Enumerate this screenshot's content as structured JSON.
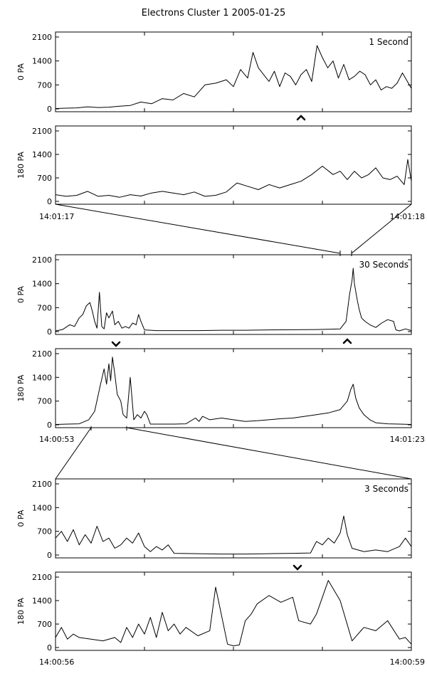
{
  "title": "Electrons Cluster 1 2005-01-25",
  "chart_data": [
    {
      "type": "line",
      "panel": "1s-0pa",
      "ylabel": "0 PA",
      "annotation": "1 Second",
      "ylim": [
        0,
        2100
      ],
      "yticks": [
        0,
        700,
        1400,
        2100
      ],
      "xlim": [
        0,
        1
      ],
      "x": [
        0,
        0.03,
        0.06,
        0.09,
        0.12,
        0.15,
        0.18,
        0.21,
        0.24,
        0.27,
        0.3,
        0.33,
        0.36,
        0.39,
        0.42,
        0.45,
        0.48,
        0.5,
        0.52,
        0.54,
        0.555,
        0.57,
        0.585,
        0.6,
        0.615,
        0.63,
        0.645,
        0.66,
        0.675,
        0.69,
        0.705,
        0.72,
        0.735,
        0.75,
        0.765,
        0.78,
        0.795,
        0.81,
        0.825,
        0.84,
        0.855,
        0.87,
        0.885,
        0.9,
        0.915,
        0.93,
        0.945,
        0.96,
        0.975,
        1.0
      ],
      "values": [
        10,
        20,
        30,
        60,
        40,
        50,
        80,
        100,
        200,
        150,
        300,
        260,
        450,
        350,
        700,
        750,
        850,
        650,
        1150,
        900,
        1650,
        1200,
        1000,
        800,
        1100,
        650,
        1050,
        950,
        700,
        1000,
        1150,
        800,
        1850,
        1500,
        1200,
        1400,
        900,
        1300,
        850,
        950,
        1100,
        1000,
        700,
        850,
        550,
        650,
        600,
        750,
        1050,
        600
      ]
    },
    {
      "type": "line",
      "panel": "1s-180pa",
      "ylabel": "180 PA",
      "ylim": [
        0,
        2100
      ],
      "yticks": [
        0,
        700,
        1400,
        2100
      ],
      "xlim": [
        0,
        1
      ],
      "xtick_labels": [
        "14:01:17",
        "14:01:18"
      ],
      "x": [
        0,
        0.03,
        0.06,
        0.09,
        0.12,
        0.15,
        0.18,
        0.21,
        0.24,
        0.27,
        0.3,
        0.33,
        0.36,
        0.39,
        0.42,
        0.45,
        0.48,
        0.51,
        0.54,
        0.57,
        0.6,
        0.63,
        0.66,
        0.69,
        0.72,
        0.75,
        0.78,
        0.8,
        0.82,
        0.84,
        0.86,
        0.88,
        0.9,
        0.92,
        0.94,
        0.96,
        0.98,
        0.99,
        1.0
      ],
      "values": [
        200,
        150,
        180,
        300,
        150,
        180,
        120,
        200,
        160,
        250,
        300,
        250,
        200,
        280,
        150,
        180,
        280,
        550,
        450,
        350,
        500,
        400,
        500,
        600,
        800,
        1050,
        800,
        900,
        650,
        900,
        700,
        800,
        1000,
        700,
        650,
        750,
        500,
        1250,
        600
      ]
    },
    {
      "type": "line",
      "panel": "30s-0pa",
      "ylabel": "0 PA",
      "annotation": "30 Seconds",
      "ylim": [
        0,
        2100
      ],
      "yticks": [
        0,
        700,
        1400,
        2100
      ],
      "xlim": [
        0,
        30
      ],
      "x": [
        0,
        0.6,
        1.2,
        1.6,
        2.0,
        2.3,
        2.6,
        2.9,
        3.1,
        3.3,
        3.5,
        3.7,
        3.9,
        4.1,
        4.3,
        4.5,
        4.8,
        5.0,
        5.3,
        5.6,
        5.9,
        6.2,
        6.5,
        6.8,
        7.0,
        7.2,
        7.5,
        8.5,
        10,
        12,
        14,
        16,
        18,
        20,
        22,
        24,
        24.5,
        24.8,
        25.0,
        25.1,
        25.2,
        25.3,
        25.45,
        25.6,
        25.8,
        26.1,
        26.5,
        27.0,
        27.5,
        28.0,
        28.5,
        28.7,
        29.0,
        29.5,
        30.0
      ],
      "values": [
        20,
        60,
        200,
        150,
        400,
        500,
        750,
        850,
        600,
        300,
        100,
        1150,
        150,
        80,
        550,
        400,
        600,
        200,
        300,
        100,
        150,
        100,
        250,
        200,
        500,
        300,
        50,
        30,
        30,
        30,
        40,
        40,
        50,
        55,
        60,
        80,
        300,
        1100,
        1500,
        1850,
        1400,
        1200,
        900,
        650,
        400,
        300,
        200,
        120,
        250,
        350,
        300,
        50,
        20,
        80,
        30
      ]
    },
    {
      "type": "line",
      "panel": "30s-180pa",
      "ylabel": "180 PA",
      "ylim": [
        0,
        2100
      ],
      "yticks": [
        0,
        700,
        1400,
        2100
      ],
      "xlim": [
        0,
        30
      ],
      "xtick_labels": [
        "14:00:53",
        "14:01:23"
      ],
      "x": [
        0,
        1,
        2,
        2.8,
        3.3,
        3.8,
        4.1,
        4.3,
        4.5,
        4.65,
        4.8,
        5.0,
        5.2,
        5.5,
        5.7,
        6.0,
        6.3,
        6.6,
        6.9,
        7.2,
        7.5,
        7.7,
        8.0,
        9,
        10,
        11,
        11.8,
        12.1,
        12.4,
        13,
        14,
        15,
        16,
        17,
        18,
        19,
        20,
        21,
        22,
        23,
        24,
        24.6,
        24.9,
        25.1,
        25.3,
        25.6,
        26.0,
        26.5,
        27,
        28,
        29,
        30
      ],
      "values": [
        10,
        20,
        30,
        150,
        400,
        1200,
        1650,
        1200,
        1800,
        1300,
        2000,
        1500,
        900,
        700,
        300,
        200,
        1400,
        150,
        300,
        200,
        400,
        300,
        20,
        20,
        20,
        30,
        200,
        100,
        250,
        150,
        200,
        150,
        100,
        120,
        150,
        180,
        200,
        250,
        300,
        350,
        450,
        700,
        1050,
        1200,
        800,
        500,
        300,
        150,
        60,
        30,
        20,
        10
      ]
    },
    {
      "type": "line",
      "panel": "3s-0pa",
      "ylabel": "0 PA",
      "annotation": "3 Seconds",
      "ylim": [
        0,
        2100
      ],
      "yticks": [
        0,
        700,
        1400,
        2100
      ],
      "xlim": [
        0,
        3
      ],
      "x": [
        0,
        0.05,
        0.1,
        0.15,
        0.2,
        0.25,
        0.3,
        0.35,
        0.4,
        0.45,
        0.5,
        0.55,
        0.6,
        0.65,
        0.7,
        0.75,
        0.8,
        0.85,
        0.9,
        0.95,
        1.0,
        1.2,
        1.4,
        1.6,
        1.8,
        2.0,
        2.15,
        2.2,
        2.25,
        2.3,
        2.35,
        2.4,
        2.43,
        2.46,
        2.5,
        2.55,
        2.6,
        2.7,
        2.8,
        2.9,
        2.95,
        3.0
      ],
      "values": [
        500,
        700,
        400,
        750,
        300,
        600,
        350,
        850,
        400,
        500,
        200,
        300,
        500,
        350,
        650,
        250,
        100,
        250,
        150,
        300,
        50,
        40,
        30,
        30,
        40,
        50,
        60,
        400,
        300,
        500,
        350,
        650,
        1150,
        600,
        200,
        150,
        100,
        150,
        100,
        250,
        500,
        250
      ]
    },
    {
      "type": "line",
      "panel": "3s-180pa",
      "ylabel": "180 PA",
      "ylim": [
        0,
        2100
      ],
      "yticks": [
        0,
        700,
        1400,
        2100
      ],
      "xlim": [
        0,
        3
      ],
      "xtick_labels": [
        "14:00:56",
        "14:00:59"
      ],
      "x": [
        0,
        0.05,
        0.1,
        0.15,
        0.2,
        0.3,
        0.4,
        0.5,
        0.55,
        0.6,
        0.65,
        0.7,
        0.75,
        0.8,
        0.85,
        0.9,
        0.95,
        1.0,
        1.05,
        1.1,
        1.2,
        1.3,
        1.35,
        1.45,
        1.5,
        1.55,
        1.6,
        1.65,
        1.7,
        1.8,
        1.9,
        2.0,
        2.05,
        2.15,
        2.2,
        2.3,
        2.4,
        2.5,
        2.6,
        2.7,
        2.8,
        2.9,
        2.95,
        3.0
      ],
      "values": [
        300,
        600,
        250,
        400,
        300,
        250,
        200,
        300,
        150,
        600,
        300,
        700,
        400,
        900,
        300,
        1050,
        500,
        700,
        400,
        600,
        350,
        500,
        1800,
        100,
        50,
        80,
        800,
        1000,
        1300,
        1550,
        1350,
        1500,
        800,
        700,
        1000,
        2000,
        1400,
        200,
        600,
        500,
        800,
        250,
        300,
        100
      ]
    }
  ],
  "time_labels": {
    "top_left": "14:01:17",
    "top_right": "14:01:18",
    "mid_left": "14:00:53",
    "mid_right": "14:01:23",
    "bottom_left": "14:00:56",
    "bottom_right": "14:00:59"
  }
}
